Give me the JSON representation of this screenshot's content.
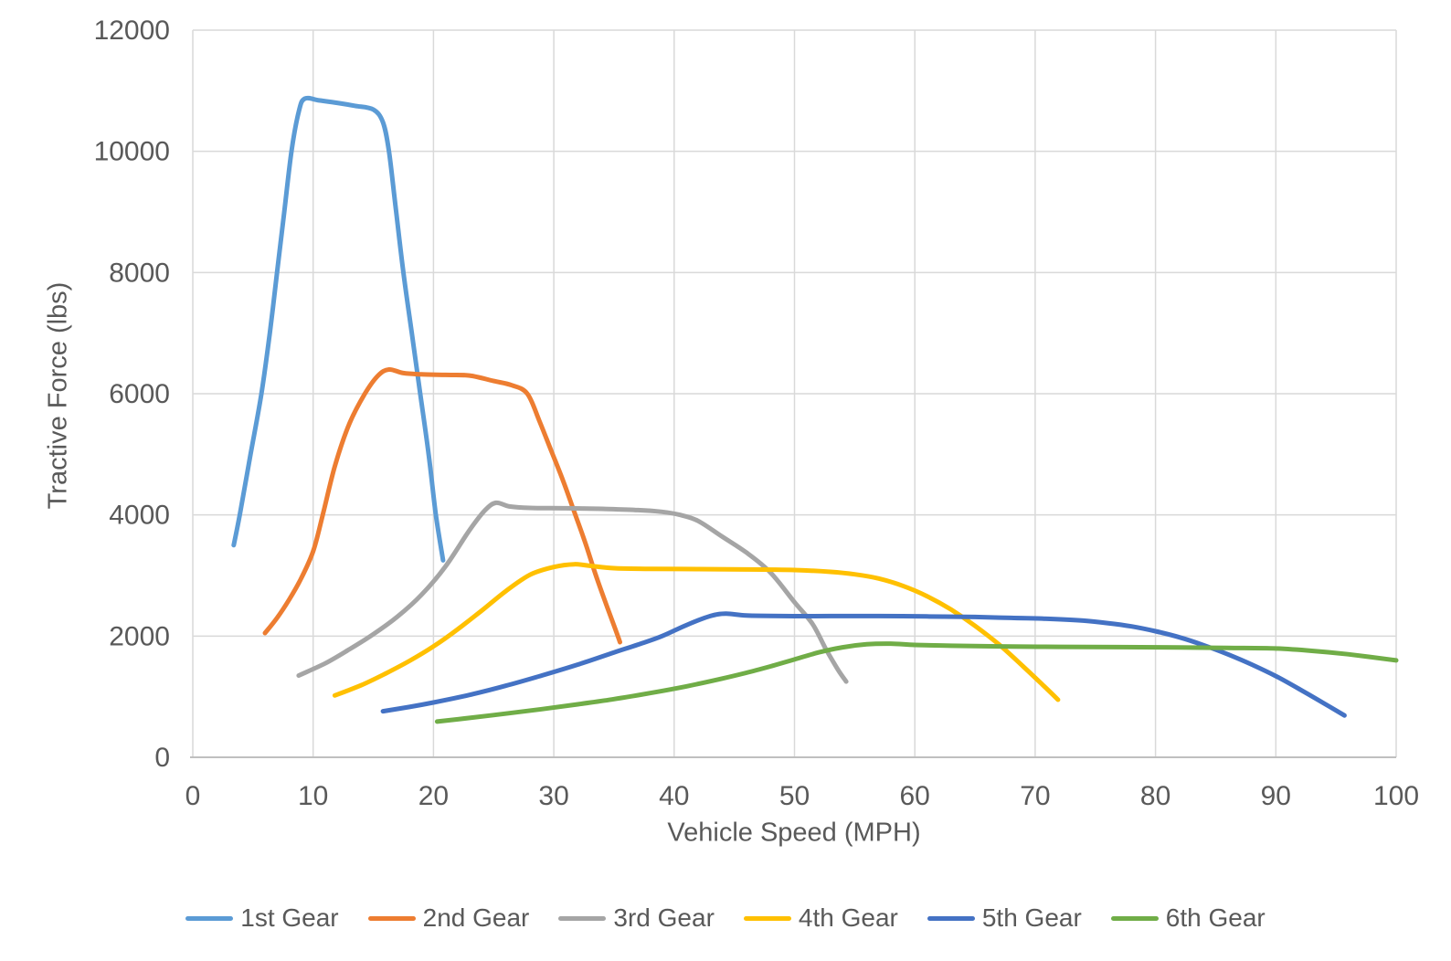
{
  "chart_data": {
    "type": "line",
    "title": "",
    "xlabel": "Vehicle Speed (MPH)",
    "ylabel": "Tractive Force (lbs)",
    "xlim": [
      0,
      100
    ],
    "ylim": [
      0,
      12000
    ],
    "x_ticks": [
      0,
      10,
      20,
      30,
      40,
      50,
      60,
      70,
      80,
      90,
      100
    ],
    "y_ticks": [
      0,
      2000,
      4000,
      6000,
      8000,
      10000,
      12000
    ],
    "grid": true,
    "legend_position": "bottom",
    "series": [
      {
        "name": "1st Gear",
        "color": "#5B9BD5",
        "points": [
          [
            3.4,
            3500
          ],
          [
            3.9,
            4000
          ],
          [
            4.8,
            5000
          ],
          [
            5.7,
            6000
          ],
          [
            6.4,
            7000
          ],
          [
            7.0,
            8000
          ],
          [
            7.6,
            9000
          ],
          [
            8.2,
            10000
          ],
          [
            8.8,
            10650
          ],
          [
            9.3,
            10870
          ],
          [
            10.5,
            10840
          ],
          [
            12,
            10800
          ],
          [
            13.5,
            10750
          ],
          [
            15,
            10690
          ],
          [
            15.8,
            10480
          ],
          [
            16.3,
            10000
          ],
          [
            16.9,
            9000
          ],
          [
            17.5,
            8000
          ],
          [
            18.2,
            7000
          ],
          [
            18.9,
            6000
          ],
          [
            19.6,
            5000
          ],
          [
            20.2,
            4000
          ],
          [
            20.8,
            3250
          ]
        ]
      },
      {
        "name": "2nd Gear",
        "color": "#ED7D31",
        "points": [
          [
            6,
            2050
          ],
          [
            7,
            2300
          ],
          [
            8,
            2600
          ],
          [
            9,
            2950
          ],
          [
            10,
            3400
          ],
          [
            10.8,
            4000
          ],
          [
            11.8,
            4800
          ],
          [
            13,
            5500
          ],
          [
            14.3,
            6000
          ],
          [
            15.4,
            6300
          ],
          [
            16.3,
            6400
          ],
          [
            17.5,
            6340
          ],
          [
            19,
            6320
          ],
          [
            21,
            6310
          ],
          [
            23,
            6300
          ],
          [
            25,
            6210
          ],
          [
            26.5,
            6140
          ],
          [
            27.8,
            6000
          ],
          [
            28.8,
            5550
          ],
          [
            29.8,
            5050
          ],
          [
            30.8,
            4550
          ],
          [
            31.7,
            4050
          ],
          [
            32.6,
            3550
          ],
          [
            33.5,
            3000
          ],
          [
            34.4,
            2500
          ],
          [
            35.1,
            2120
          ],
          [
            35.5,
            1900
          ]
        ]
      },
      {
        "name": "3rd Gear",
        "color": "#A5A5A5",
        "points": [
          [
            8.8,
            1350
          ],
          [
            11,
            1550
          ],
          [
            13,
            1780
          ],
          [
            15,
            2030
          ],
          [
            17,
            2320
          ],
          [
            19,
            2680
          ],
          [
            21,
            3150
          ],
          [
            23,
            3750
          ],
          [
            24.3,
            4080
          ],
          [
            25.2,
            4200
          ],
          [
            26.3,
            4140
          ],
          [
            28,
            4115
          ],
          [
            31,
            4110
          ],
          [
            34,
            4100
          ],
          [
            37,
            4080
          ],
          [
            39,
            4050
          ],
          [
            40.5,
            4000
          ],
          [
            42,
            3900
          ],
          [
            44,
            3640
          ],
          [
            46,
            3380
          ],
          [
            48,
            3050
          ],
          [
            50,
            2560
          ],
          [
            51.5,
            2200
          ],
          [
            52.6,
            1790
          ],
          [
            53.6,
            1450
          ],
          [
            54.3,
            1250
          ]
        ]
      },
      {
        "name": "4th Gear",
        "color": "#FFC000",
        "points": [
          [
            11.8,
            1020
          ],
          [
            14,
            1190
          ],
          [
            16,
            1380
          ],
          [
            18,
            1590
          ],
          [
            20,
            1830
          ],
          [
            22,
            2110
          ],
          [
            24,
            2420
          ],
          [
            26,
            2740
          ],
          [
            28,
            3010
          ],
          [
            30,
            3140
          ],
          [
            31.7,
            3185
          ],
          [
            33,
            3160
          ],
          [
            35,
            3120
          ],
          [
            38,
            3110
          ],
          [
            42,
            3105
          ],
          [
            46,
            3100
          ],
          [
            50,
            3090
          ],
          [
            53,
            3060
          ],
          [
            55,
            3020
          ],
          [
            57,
            2950
          ],
          [
            59,
            2830
          ],
          [
            61,
            2660
          ],
          [
            63,
            2440
          ],
          [
            65,
            2170
          ],
          [
            67,
            1860
          ],
          [
            69,
            1500
          ],
          [
            70.6,
            1200
          ],
          [
            71.9,
            950
          ]
        ]
      },
      {
        "name": "5th Gear",
        "color": "#4472C4",
        "points": [
          [
            15.8,
            760
          ],
          [
            18,
            830
          ],
          [
            20,
            905
          ],
          [
            23,
            1030
          ],
          [
            26,
            1180
          ],
          [
            29,
            1350
          ],
          [
            32,
            1530
          ],
          [
            35,
            1730
          ],
          [
            37,
            1860
          ],
          [
            39,
            2000
          ],
          [
            41,
            2180
          ],
          [
            43,
            2330
          ],
          [
            44.3,
            2370
          ],
          [
            46,
            2340
          ],
          [
            49,
            2330
          ],
          [
            53,
            2330
          ],
          [
            57,
            2330
          ],
          [
            61,
            2325
          ],
          [
            65,
            2315
          ],
          [
            68,
            2300
          ],
          [
            71,
            2285
          ],
          [
            74,
            2255
          ],
          [
            76,
            2215
          ],
          [
            78,
            2160
          ],
          [
            80,
            2080
          ],
          [
            82,
            1980
          ],
          [
            84,
            1850
          ],
          [
            86,
            1700
          ],
          [
            88,
            1530
          ],
          [
            90,
            1340
          ],
          [
            92,
            1120
          ],
          [
            94,
            890
          ],
          [
            95.7,
            690
          ]
        ]
      },
      {
        "name": "6th Gear",
        "color": "#70AD47",
        "points": [
          [
            20.3,
            590
          ],
          [
            23,
            650
          ],
          [
            26,
            720
          ],
          [
            29,
            795
          ],
          [
            32,
            875
          ],
          [
            35,
            960
          ],
          [
            38,
            1060
          ],
          [
            41,
            1170
          ],
          [
            44,
            1300
          ],
          [
            46,
            1395
          ],
          [
            48,
            1500
          ],
          [
            50,
            1615
          ],
          [
            52,
            1730
          ],
          [
            54,
            1815
          ],
          [
            56,
            1865
          ],
          [
            58,
            1875
          ],
          [
            60,
            1855
          ],
          [
            63,
            1840
          ],
          [
            67,
            1830
          ],
          [
            72,
            1822
          ],
          [
            77,
            1818
          ],
          [
            82,
            1812
          ],
          [
            86,
            1805
          ],
          [
            90,
            1795
          ],
          [
            93,
            1757
          ],
          [
            96,
            1700
          ],
          [
            100,
            1600
          ]
        ]
      }
    ]
  },
  "colors": {
    "gridline": "#D9D9D9",
    "axis_line": "#BFBFBF",
    "tick_text": "#595959",
    "background": "#FFFFFF"
  }
}
